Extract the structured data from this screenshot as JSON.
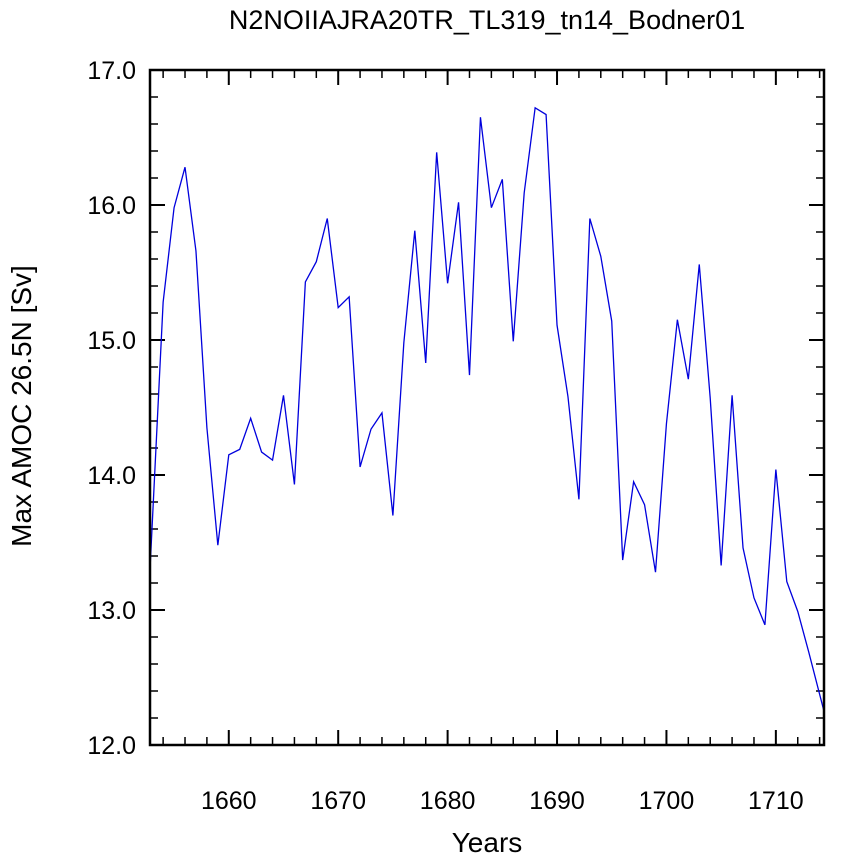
{
  "chart_data": {
    "type": "line",
    "title": "N2NOIIAJRA20TR_TL319_tn14_Bodner01",
    "xlabel": "Years",
    "ylabel": "Max AMOC 26.5N [Sv]",
    "xlim": [
      1652.8,
      1714.4
    ],
    "ylim": [
      12.0,
      17.0
    ],
    "xticks": [
      1660,
      1670,
      1680,
      1690,
      1700,
      1710
    ],
    "xtick_labels": [
      "1660",
      "1670",
      "1680",
      "1690",
      "1700",
      "1710"
    ],
    "yticks": [
      12.0,
      13.0,
      14.0,
      15.0,
      16.0,
      17.0
    ],
    "ytick_labels": [
      "12.0",
      "13.0",
      "14.0",
      "15.0",
      "16.0",
      "17.0"
    ],
    "grid": false,
    "line_color": "#0000dd",
    "series": [
      {
        "x": [
          1652.8,
          1654,
          1655,
          1656,
          1657,
          1658,
          1659,
          1660,
          1661,
          1662,
          1663,
          1664,
          1665,
          1666,
          1667,
          1668,
          1669,
          1670,
          1671,
          1672,
          1673,
          1674,
          1675,
          1676,
          1677,
          1678,
          1679,
          1680,
          1681,
          1682,
          1683,
          1684,
          1685,
          1686,
          1687,
          1688,
          1689,
          1690,
          1691,
          1692,
          1693,
          1694,
          1695,
          1696,
          1697,
          1698,
          1699,
          1700,
          1701,
          1702,
          1703,
          1704,
          1705,
          1706,
          1707,
          1708,
          1709,
          1710,
          1711,
          1712,
          1713,
          1714.4
        ],
        "y": [
          13.3,
          15.28,
          15.98,
          16.28,
          15.66,
          14.35,
          13.48,
          14.15,
          14.19,
          14.42,
          14.17,
          14.11,
          14.59,
          13.93,
          15.43,
          15.58,
          15.9,
          15.24,
          15.32,
          14.06,
          14.34,
          14.46,
          13.7,
          14.98,
          15.81,
          14.83,
          16.39,
          15.42,
          16.02,
          14.74,
          16.65,
          15.98,
          16.19,
          14.99,
          16.09,
          16.72,
          16.67,
          15.11,
          14.58,
          13.82,
          15.9,
          15.62,
          15.14,
          13.37,
          13.95,
          13.78,
          13.28,
          14.38,
          15.15,
          14.71,
          15.56,
          14.57,
          13.33,
          14.59,
          13.46,
          13.09,
          12.89,
          14.04,
          13.21,
          12.99,
          12.69,
          12.25
        ]
      }
    ]
  }
}
